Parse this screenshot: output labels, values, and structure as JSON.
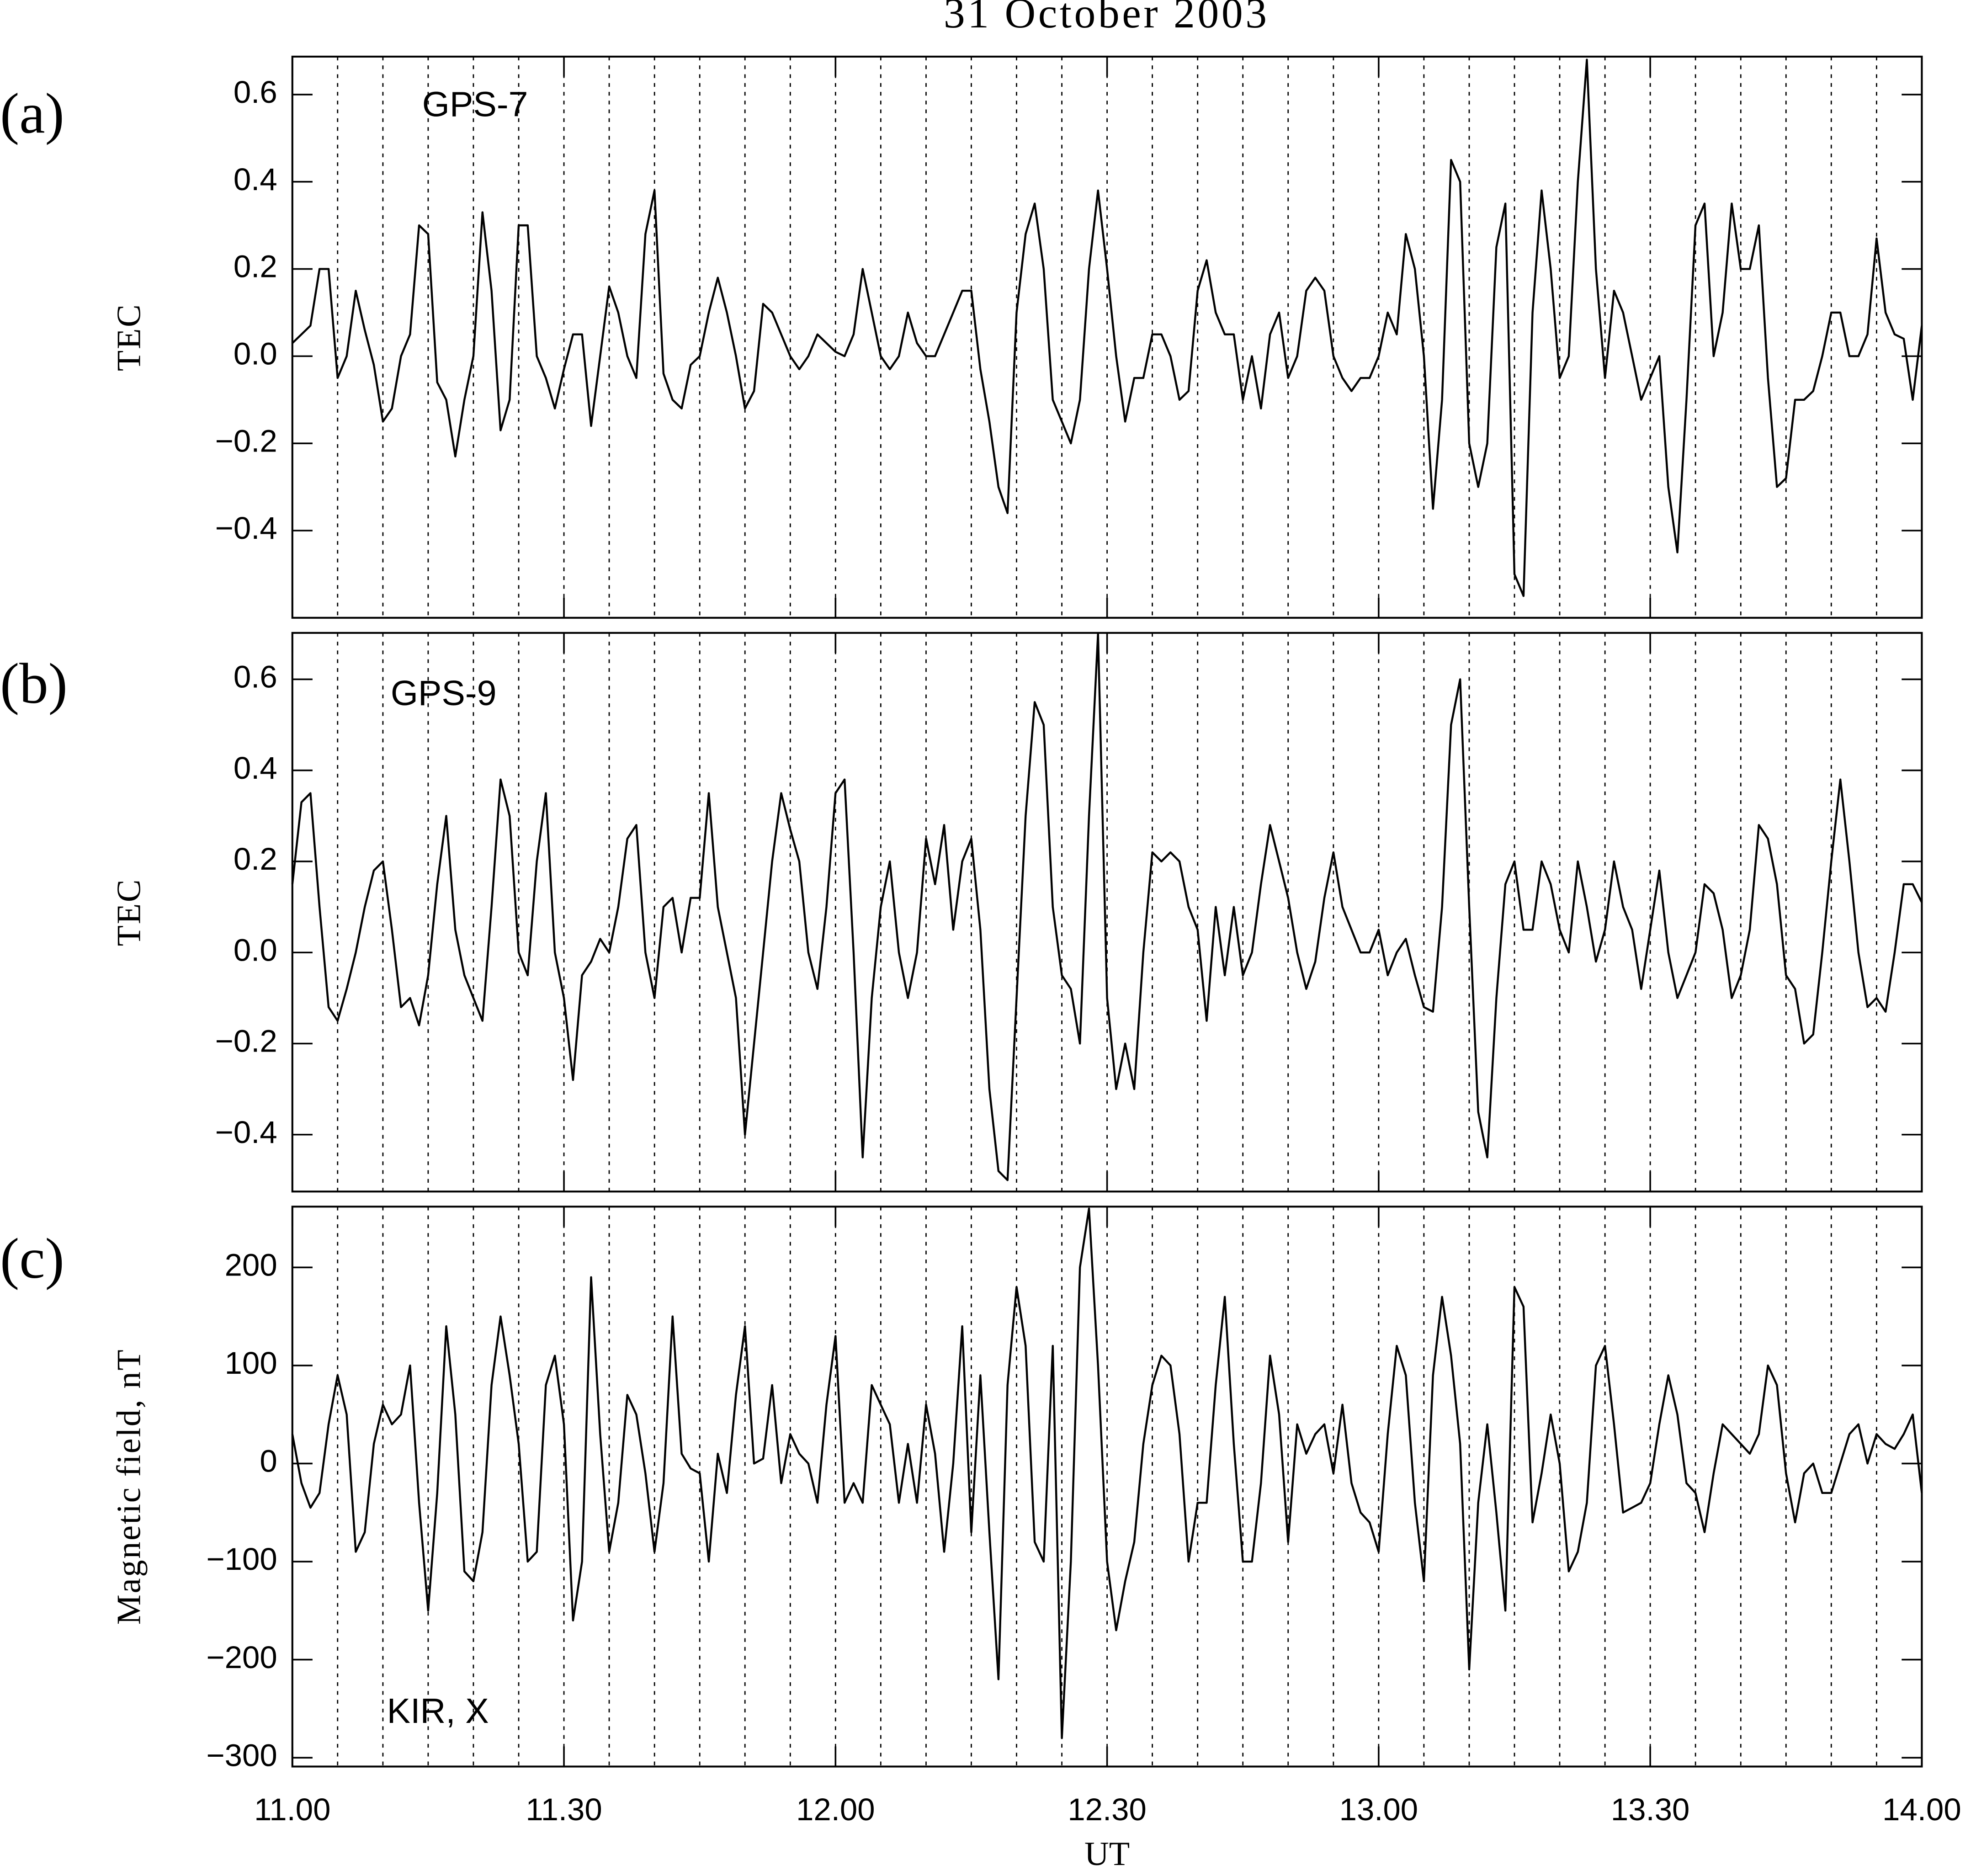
{
  "chart_data": [
    {
      "type": "line",
      "title": "31 October 2003",
      "panel": "(a)",
      "label": "GPS-7",
      "ylabel": "TEC",
      "color": "#000000",
      "xlim": [
        11,
        14
      ],
      "ylim": [
        -0.6,
        0.687
      ],
      "yticks": [
        {
          "value": -0.4,
          "label": "−0.4"
        },
        {
          "value": -0.2,
          "label": "−0.2"
        },
        {
          "value": 0,
          "label": "0.0"
        },
        0.2,
        0.4,
        0.6
      ],
      "x": [
        11,
        11.0167,
        11.0333,
        11.05,
        11.0667,
        11.0833,
        11.1,
        11.1167,
        11.1333,
        11.15,
        11.1667,
        11.1833,
        11.2,
        11.2167,
        11.2333,
        11.25,
        11.2667,
        11.2833,
        11.3,
        11.3167,
        11.3333,
        11.35,
        11.3667,
        11.3833,
        11.4,
        11.4167,
        11.4333,
        11.45,
        11.4667,
        11.4833,
        11.5,
        11.5167,
        11.5333,
        11.55,
        11.5667,
        11.5833,
        11.6,
        11.6167,
        11.6333,
        11.65,
        11.6667,
        11.6833,
        11.7,
        11.7167,
        11.7333,
        11.75,
        11.7667,
        11.7833,
        11.8,
        11.8167,
        11.8333,
        11.85,
        11.8667,
        11.8833,
        11.9,
        11.9167,
        11.9333,
        11.95,
        11.9667,
        11.9833,
        12,
        12.0167,
        12.0333,
        12.05,
        12.0667,
        12.0833,
        12.1,
        12.1167,
        12.1333,
        12.15,
        12.1667,
        12.1833,
        12.2,
        12.2167,
        12.2333,
        12.25,
        12.2667,
        12.2833,
        12.3,
        12.3167,
        12.3333,
        12.35,
        12.3667,
        12.3833,
        12.4,
        12.4167,
        12.4333,
        12.45,
        12.4667,
        12.4833,
        12.5,
        12.5167,
        12.5333,
        12.55,
        12.5667,
        12.5833,
        12.6,
        12.6167,
        12.6333,
        12.65,
        12.6667,
        12.6833,
        12.7,
        12.7167,
        12.7333,
        12.75,
        12.7667,
        12.7833,
        12.8,
        12.8167,
        12.8333,
        12.85,
        12.8667,
        12.8833,
        12.9,
        12.9167,
        12.9333,
        12.95,
        12.9667,
        12.9833,
        13,
        13.0167,
        13.0333,
        13.05,
        13.0667,
        13.0833,
        13.1,
        13.1167,
        13.1333,
        13.15,
        13.1667,
        13.1833,
        13.2,
        13.2167,
        13.2333,
        13.25,
        13.2667,
        13.2833,
        13.3,
        13.3167,
        13.3333,
        13.35,
        13.3667,
        13.3833,
        13.4,
        13.4167,
        13.4333,
        13.45,
        13.4667,
        13.4833,
        13.5,
        13.5167,
        13.5333,
        13.55,
        13.5667,
        13.5833,
        13.6,
        13.6167,
        13.6333,
        13.65,
        13.6667,
        13.6833,
        13.7,
        13.7167,
        13.7333,
        13.75,
        13.7667,
        13.7833,
        13.8,
        13.8167,
        13.8333,
        13.85,
        13.8667,
        13.8833,
        13.9,
        13.9167,
        13.9333,
        13.95,
        13.9667,
        13.9833,
        14
      ],
      "values": [
        0.03,
        0.05,
        0.07,
        0.2,
        0.2,
        -0.05,
        0,
        0.15,
        0.06,
        -0.02,
        -0.15,
        -0.12,
        0,
        0.05,
        0.3,
        0.28,
        -0.06,
        -0.1,
        -0.23,
        -0.1,
        0,
        0.33,
        0.15,
        -0.17,
        -0.1,
        0.3,
        0.3,
        0,
        -0.05,
        -0.12,
        -0.03,
        0.05,
        0.05,
        -0.16,
        0,
        0.16,
        0.1,
        0,
        -0.05,
        0.28,
        0.38,
        -0.04,
        -0.1,
        -0.12,
        -0.02,
        0,
        0.1,
        0.18,
        0.1,
        0,
        -0.12,
        -0.08,
        0.12,
        0.1,
        0.05,
        0,
        -0.03,
        0,
        0.05,
        0.03,
        0.01,
        0,
        0.05,
        0.2,
        0.1,
        0,
        -0.03,
        0,
        0.1,
        0.03,
        0,
        0,
        0.05,
        0.1,
        0.15,
        0.15,
        -0.03,
        -0.15,
        -0.3,
        -0.36,
        0.1,
        0.28,
        0.35,
        0.2,
        -0.1,
        -0.15,
        -0.2,
        -0.1,
        0.2,
        0.38,
        0.2,
        0,
        -0.15,
        -0.05,
        -0.05,
        0.05,
        0.05,
        0,
        -0.1,
        -0.08,
        0.15,
        0.22,
        0.1,
        0.05,
        0.05,
        -0.1,
        0,
        -0.12,
        0.05,
        0.1,
        -0.05,
        0,
        0.15,
        0.18,
        0.15,
        0,
        -0.05,
        -0.08,
        -0.05,
        -0.05,
        0,
        0.1,
        0.05,
        0.28,
        0.2,
        0,
        -0.35,
        -0.1,
        0.45,
        0.4,
        -0.2,
        -0.3,
        -0.2,
        0.25,
        0.35,
        -0.5,
        -0.55,
        0.1,
        0.38,
        0.2,
        -0.05,
        0,
        0.4,
        0.68,
        0.2,
        -0.05,
        0.15,
        0.1,
        0,
        -0.1,
        -0.05,
        0,
        -0.3,
        -0.45,
        -0.1,
        0.3,
        0.35,
        0,
        0.1,
        0.35,
        0.2,
        0.2,
        0.3,
        -0.05,
        -0.3,
        -0.28,
        -0.1,
        -0.1,
        -0.08,
        0,
        0.1,
        0.1,
        0,
        0,
        0.05,
        0.27,
        0.1,
        0.05,
        0.04,
        -0.1,
        0.07
      ]
    },
    {
      "type": "line",
      "panel": "(b)",
      "label": "GPS-9",
      "ylabel": "TEC",
      "color": "#000000",
      "xlim": [
        11,
        14
      ],
      "ylim": [
        -0.525,
        0.702
      ],
      "yticks": [
        {
          "value": -0.4,
          "label": "−0.4"
        },
        {
          "value": -0.2,
          "label": "−0.2"
        },
        {
          "value": 0,
          "label": "0.0"
        },
        0.2,
        0.4,
        0.6
      ],
      "x": [
        11,
        11.0167,
        11.0333,
        11.05,
        11.0667,
        11.0833,
        11.1,
        11.1167,
        11.1333,
        11.15,
        11.1667,
        11.1833,
        11.2,
        11.2167,
        11.2333,
        11.25,
        11.2667,
        11.2833,
        11.3,
        11.3167,
        11.3333,
        11.35,
        11.3667,
        11.3833,
        11.4,
        11.4167,
        11.4333,
        11.45,
        11.4667,
        11.4833,
        11.5,
        11.5167,
        11.5333,
        11.55,
        11.5667,
        11.5833,
        11.6,
        11.6167,
        11.6333,
        11.65,
        11.6667,
        11.6833,
        11.7,
        11.7167,
        11.7333,
        11.75,
        11.7667,
        11.7833,
        11.8,
        11.8167,
        11.8333,
        11.85,
        11.8667,
        11.8833,
        11.9,
        11.9167,
        11.9333,
        11.95,
        11.9667,
        11.9833,
        12,
        12.0167,
        12.0333,
        12.05,
        12.0667,
        12.0833,
        12.1,
        12.1167,
        12.1333,
        12.15,
        12.1667,
        12.1833,
        12.2,
        12.2167,
        12.2333,
        12.25,
        12.2667,
        12.2833,
        12.3,
        12.3167,
        12.3333,
        12.35,
        12.3667,
        12.3833,
        12.4,
        12.4167,
        12.4333,
        12.45,
        12.4667,
        12.4833,
        12.5,
        12.5167,
        12.5333,
        12.55,
        12.5667,
        12.5833,
        12.6,
        12.6167,
        12.6333,
        12.65,
        12.6667,
        12.6833,
        12.7,
        12.7167,
        12.7333,
        12.75,
        12.7667,
        12.7833,
        12.8,
        12.8167,
        12.8333,
        12.85,
        12.8667,
        12.8833,
        12.9,
        12.9167,
        12.9333,
        12.95,
        12.9667,
        12.9833,
        13,
        13.0167,
        13.0333,
        13.05,
        13.0667,
        13.0833,
        13.1,
        13.1167,
        13.1333,
        13.15,
        13.1667,
        13.1833,
        13.2,
        13.2167,
        13.2333,
        13.25,
        13.2667,
        13.2833,
        13.3,
        13.3167,
        13.3333,
        13.35,
        13.3667,
        13.3833,
        13.4,
        13.4167,
        13.4333,
        13.45,
        13.4667,
        13.4833,
        13.5,
        13.5167,
        13.5333,
        13.55,
        13.5667,
        13.5833,
        13.6,
        13.6167,
        13.6333,
        13.65,
        13.6667,
        13.6833,
        13.7,
        13.7167,
        13.7333,
        13.75,
        13.7667,
        13.7833,
        13.8,
        13.8167,
        13.8333,
        13.85,
        13.8667,
        13.8833,
        13.9,
        13.9167,
        13.9333,
        13.95,
        13.9667,
        13.9833,
        14
      ],
      "values": [
        0.15,
        0.33,
        0.35,
        0.1,
        -0.12,
        -0.15,
        -0.08,
        0,
        0.1,
        0.18,
        0.2,
        0.05,
        -0.12,
        -0.1,
        -0.16,
        -0.05,
        0.15,
        0.3,
        0.05,
        -0.05,
        -0.1,
        -0.15,
        0.1,
        0.38,
        0.3,
        0,
        -0.05,
        0.2,
        0.35,
        0,
        -0.1,
        -0.28,
        -0.05,
        -0.02,
        0.03,
        0,
        0.1,
        0.25,
        0.28,
        0,
        -0.1,
        0.1,
        0.12,
        0,
        0.12,
        0.12,
        0.35,
        0.1,
        0,
        -0.1,
        -0.4,
        -0.2,
        0,
        0.2,
        0.35,
        0.27,
        0.2,
        0,
        -0.08,
        0.1,
        0.35,
        0.38,
        0,
        -0.45,
        -0.1,
        0.1,
        0.2,
        0,
        -0.1,
        0,
        0.25,
        0.15,
        0.28,
        0.05,
        0.2,
        0.25,
        0.05,
        -0.3,
        -0.48,
        -0.5,
        -0.1,
        0.3,
        0.55,
        0.5,
        0.1,
        -0.05,
        -0.08,
        -0.2,
        0.3,
        0.7,
        -0.1,
        -0.3,
        -0.2,
        -0.3,
        0,
        0.22,
        0.2,
        0.22,
        0.2,
        0.1,
        0.05,
        -0.15,
        0.1,
        -0.05,
        0.1,
        -0.05,
        0,
        0.15,
        0.28,
        0.2,
        0.12,
        0,
        -0.08,
        -0.02,
        0.12,
        0.22,
        0.1,
        0.05,
        0,
        0,
        0.05,
        -0.05,
        0,
        0.03,
        -0.05,
        -0.12,
        -0.13,
        0.1,
        0.5,
        0.6,
        0.1,
        -0.35,
        -0.45,
        -0.1,
        0.15,
        0.2,
        0.05,
        0.05,
        0.2,
        0.15,
        0.05,
        0,
        0.2,
        0.1,
        -0.02,
        0.05,
        0.2,
        0.1,
        0.05,
        -0.08,
        0.05,
        0.18,
        0,
        -0.1,
        -0.05,
        0,
        0.15,
        0.13,
        0.05,
        -0.1,
        -0.05,
        0.05,
        0.28,
        0.25,
        0.15,
        -0.05,
        -0.08,
        -0.2,
        -0.18,
        0,
        0.2,
        0.38,
        0.2,
        0,
        -0.12,
        -0.1,
        -0.13,
        0,
        0.15,
        0.15,
        0.11
      ]
    },
    {
      "type": "line",
      "panel": "(c)",
      "label": "KIR, X",
      "ylabel": "Magnetic field, nT",
      "xlabel": "UT",
      "color": "#000000",
      "xlim": [
        11,
        14
      ],
      "ylim": [
        -309,
        262
      ],
      "xticks": [
        {
          "value": 11,
          "label": "11.00"
        },
        {
          "value": 11.5,
          "label": "11.30"
        },
        {
          "value": 12,
          "label": "12.00"
        },
        {
          "value": 12.5,
          "label": "12.30"
        },
        {
          "value": 13,
          "label": "13.00"
        },
        {
          "value": 13.5,
          "label": "13.30"
        },
        {
          "value": 14,
          "label": "14.00"
        }
      ],
      "xgrid": [
        11.0833,
        11.1667,
        11.25,
        11.3333,
        11.4167,
        11.5,
        11.5833,
        11.6667,
        11.75,
        11.8333,
        11.9167,
        12,
        12.0833,
        12.1667,
        12.25,
        12.3333,
        12.4167,
        12.5,
        12.5833,
        12.6667,
        12.75,
        12.8333,
        12.9167,
        13,
        13.0833,
        13.1667,
        13.25,
        13.3333,
        13.4167,
        13.5,
        13.5833,
        13.6667,
        13.75,
        13.8333,
        13.9167
      ],
      "yticks": [
        {
          "value": -300,
          "label": "−300"
        },
        {
          "value": -200,
          "label": "−200"
        },
        {
          "value": -100,
          "label": "−100"
        },
        0,
        100,
        200
      ],
      "x": [
        11,
        11.0167,
        11.0333,
        11.05,
        11.0667,
        11.0833,
        11.1,
        11.1167,
        11.1333,
        11.15,
        11.1667,
        11.1833,
        11.2,
        11.2167,
        11.2333,
        11.25,
        11.2667,
        11.2833,
        11.3,
        11.3167,
        11.3333,
        11.35,
        11.3667,
        11.3833,
        11.4,
        11.4167,
        11.4333,
        11.45,
        11.4667,
        11.4833,
        11.5,
        11.5167,
        11.5333,
        11.55,
        11.5667,
        11.5833,
        11.6,
        11.6167,
        11.6333,
        11.65,
        11.6667,
        11.6833,
        11.7,
        11.7167,
        11.7333,
        11.75,
        11.7667,
        11.7833,
        11.8,
        11.8167,
        11.8333,
        11.85,
        11.8667,
        11.8833,
        11.9,
        11.9167,
        11.9333,
        11.95,
        11.9667,
        11.9833,
        12,
        12.0167,
        12.0333,
        12.05,
        12.0667,
        12.0833,
        12.1,
        12.1167,
        12.1333,
        12.15,
        12.1667,
        12.1833,
        12.2,
        12.2167,
        12.2333,
        12.25,
        12.2667,
        12.2833,
        12.3,
        12.3167,
        12.3333,
        12.35,
        12.3667,
        12.3833,
        12.4,
        12.4167,
        12.4333,
        12.45,
        12.4667,
        12.4833,
        12.5,
        12.5167,
        12.5333,
        12.55,
        12.5667,
        12.5833,
        12.6,
        12.6167,
        12.6333,
        12.65,
        12.6667,
        12.6833,
        12.7,
        12.7167,
        12.7333,
        12.75,
        12.7667,
        12.7833,
        12.8,
        12.8167,
        12.8333,
        12.85,
        12.8667,
        12.8833,
        12.9,
        12.9167,
        12.9333,
        12.95,
        12.9667,
        12.9833,
        13,
        13.0167,
        13.0333,
        13.05,
        13.0667,
        13.0833,
        13.1,
        13.1167,
        13.1333,
        13.15,
        13.1667,
        13.1833,
        13.2,
        13.2167,
        13.2333,
        13.25,
        13.2667,
        13.2833,
        13.3,
        13.3167,
        13.3333,
        13.35,
        13.3667,
        13.3833,
        13.4,
        13.4167,
        13.4333,
        13.45,
        13.4667,
        13.4833,
        13.5,
        13.5167,
        13.5333,
        13.55,
        13.5667,
        13.5833,
        13.6,
        13.6167,
        13.6333,
        13.65,
        13.6667,
        13.6833,
        13.7,
        13.7167,
        13.7333,
        13.75,
        13.7667,
        13.7833,
        13.8,
        13.8167,
        13.8333,
        13.85,
        13.8667,
        13.8833,
        13.9,
        13.9167,
        13.9333,
        13.95,
        13.9667,
        13.9833,
        14
      ],
      "values": [
        30,
        -20,
        -45,
        -30,
        40,
        90,
        50,
        -90,
        -70,
        20,
        60,
        40,
        50,
        100,
        -40,
        -150,
        -30,
        140,
        50,
        -110,
        -120,
        -70,
        80,
        150,
        90,
        20,
        -100,
        -90,
        80,
        110,
        40,
        -160,
        -100,
        190,
        30,
        -90,
        -40,
        70,
        50,
        -10,
        -90,
        -20,
        150,
        10,
        -5,
        -10,
        -100,
        10,
        -30,
        70,
        140,
        0,
        5,
        80,
        -20,
        30,
        10,
        0,
        -40,
        60,
        130,
        -40,
        -20,
        -40,
        80,
        60,
        40,
        -40,
        20,
        -40,
        60,
        10,
        -90,
        0,
        140,
        -70,
        90,
        -70,
        -220,
        80,
        180,
        120,
        -80,
        -100,
        120,
        -280,
        -100,
        200,
        260,
        100,
        -100,
        -170,
        -120,
        -80,
        20,
        80,
        110,
        100,
        30,
        -100,
        -40,
        -40,
        80,
        170,
        20,
        -100,
        -100,
        -20,
        110,
        50,
        -80,
        40,
        10,
        30,
        40,
        -10,
        60,
        -20,
        -50,
        -60,
        -90,
        30,
        120,
        90,
        -40,
        -120,
        90,
        170,
        110,
        20,
        -210,
        -40,
        40,
        -50,
        -150,
        180,
        160,
        -60,
        -10,
        50,
        0,
        -110,
        -90,
        -40,
        100,
        120,
        40,
        -50,
        -45,
        -40,
        -20,
        40,
        90,
        50,
        -20,
        -30,
        -70,
        -10,
        40,
        30,
        20,
        10,
        30,
        100,
        80,
        -10,
        -60,
        -10,
        0,
        -30,
        -30,
        0,
        30,
        40,
        0,
        30,
        20,
        15,
        30,
        50,
        -30
      ]
    }
  ]
}
